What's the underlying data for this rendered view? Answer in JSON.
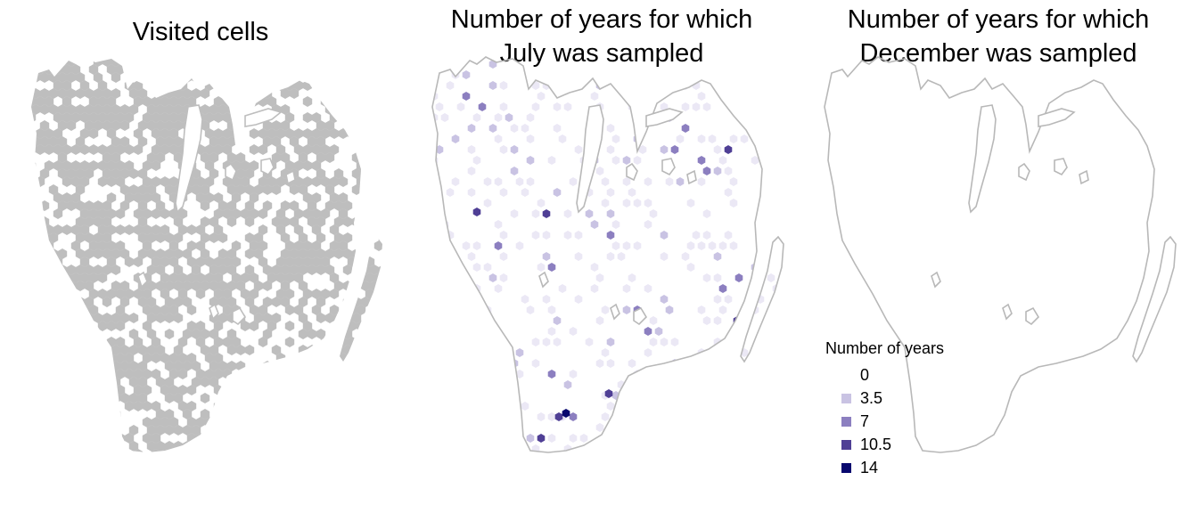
{
  "panels": [
    {
      "title": "Visited cells",
      "title_line2": ""
    },
    {
      "title": "Number of years for which",
      "title_line2": "July was sampled"
    },
    {
      "title": "Number of years for which",
      "title_line2": "December was sampled"
    }
  ],
  "legend": {
    "title": "Number of years",
    "items": [
      {
        "label": "0",
        "color": "#ffffff"
      },
      {
        "label": "3.5",
        "color": "#c9c3e3"
      },
      {
        "label": "7",
        "color": "#8c7fc0"
      },
      {
        "label": "10.5",
        "color": "#4f3f95"
      },
      {
        "label": "14",
        "color": "#08086e"
      }
    ]
  },
  "colors": {
    "outline": "#b8b8b8",
    "visited": "#bebebe"
  }
}
